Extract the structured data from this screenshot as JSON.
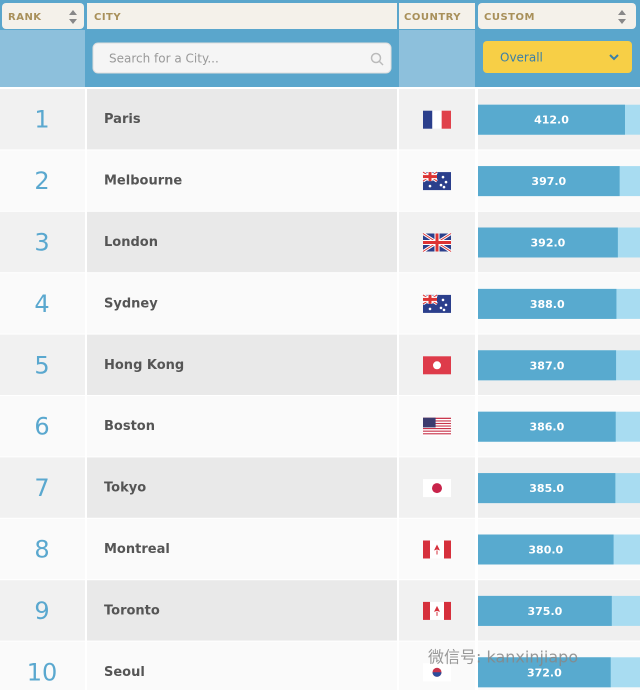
{
  "header": {
    "columns": [
      "RANK",
      "CITY",
      "COUNTRY",
      "CUSTOM"
    ],
    "search_placeholder": "Search for a City...",
    "filter": "Overall"
  },
  "table": {
    "rows": [
      {
        "rank": 1,
        "city": "Paris",
        "score": 412,
        "score_label": "412.0"
      },
      {
        "rank": 2,
        "city": "Melbourne",
        "score": 397,
        "score_label": "397.0"
      },
      {
        "rank": 3,
        "city": "London",
        "score": 392,
        "score_label": "392.0"
      },
      {
        "rank": 4,
        "city": "Sydney",
        "score": 388,
        "score_label": "388.0"
      },
      {
        "rank": 5,
        "city": "Hong Kong",
        "score": 387,
        "score_label": "387.0"
      },
      {
        "rank": 6,
        "city": "Boston",
        "score": 386,
        "score_label": "386.0"
      },
      {
        "rank": 7,
        "city": "Tokyo",
        "score": 385,
        "score_label": "385.0"
      },
      {
        "rank": 8,
        "city": "Montreal",
        "score": 380,
        "score_label": "380.0"
      },
      {
        "rank": 9,
        "city": "Toronto",
        "score": 375,
        "score_label": "375.0"
      },
      {
        "rank": 10,
        "city": "Seoul",
        "score": 372,
        "score_label": "372.0"
      }
    ]
  },
  "watermark": "微信号: kanxinjiapo"
}
